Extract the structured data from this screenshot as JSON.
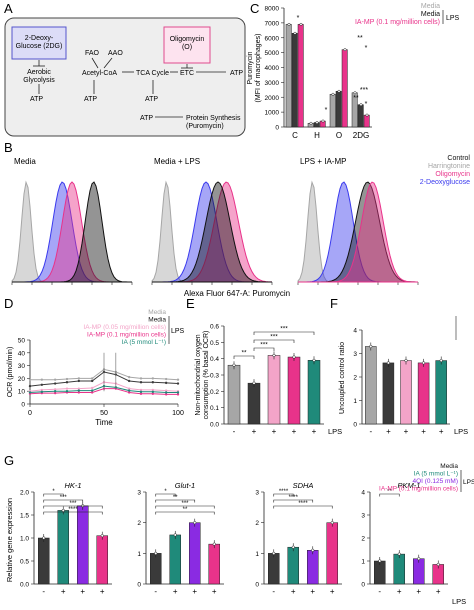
{
  "colors": {
    "grey": "#a6a6a6",
    "dark": "#3a3a3a",
    "pink": "#e8338a",
    "lightpink": "#f3a4c8",
    "teal": "#1f8a7a",
    "purple": "#8a2be2",
    "blue": "#3a3aee",
    "black": "#111111"
  },
  "panel_labels": [
    "A",
    "B",
    "C",
    "D",
    "E",
    "F",
    "G"
  ],
  "panelA": {
    "nodes": {
      "dg": "2-Deoxy-\nGlucose (2DG)",
      "aerobic": "Aerobic\nGlycolysis",
      "fao": "FAO",
      "aao": "AAO",
      "acetyl": "Acetyl-CoA",
      "tca": "TCA Cycle",
      "olig": "Oligomycin\n(O)",
      "etc": "ETC",
      "atp1": "ATP",
      "atp2": "ATP",
      "atp3": "ATP",
      "atp4": "ATP",
      "atp5": "ATP",
      "protein": "Protein Synthesis\n(Puromycin)"
    }
  },
  "panelB": {
    "titles": [
      "Media",
      "Media + LPS",
      "LPS + IA-MP"
    ],
    "legend": [
      {
        "name": "Control",
        "color": "#111111"
      },
      {
        "name": "Harringtonine",
        "color": "#a6a6a6"
      },
      {
        "name": "Oligomycin",
        "color": "#e8338a"
      },
      {
        "name": "2-Deoxyglucose",
        "color": "#3a3aee"
      }
    ],
    "xlabel": "Alexa Fluor 647-A: Puromycin"
  },
  "chart_data": [
    {
      "id": "C",
      "type": "bar",
      "ylabel": "Puromycin\n(MFI of macrophages)",
      "ylim": [
        0,
        8000
      ],
      "yticks": [
        "0",
        "1000",
        "2000",
        "3000",
        "4000",
        "5000",
        "6000",
        "7000",
        "8000"
      ],
      "categories": [
        "C",
        "H",
        "O",
        "2DG"
      ],
      "legend": [
        "Media",
        "Media",
        "IA-MP (0.1 mg/million cells)"
      ],
      "legend_bracket": "LPS",
      "series": [
        {
          "color": "grey",
          "values": [
            6900,
            250,
            2200,
            2300
          ]
        },
        {
          "color": "dark",
          "values": [
            6300,
            300,
            2400,
            1500
          ]
        },
        {
          "color": "pink",
          "values": [
            6900,
            400,
            5200,
            800
          ]
        }
      ],
      "significance": [
        "*",
        "*",
        "**",
        "*",
        "***",
        "**",
        "*"
      ]
    },
    {
      "id": "D",
      "type": "line",
      "xlabel": "Time",
      "ylabel": "OCR (pmol/min)",
      "xlim": [
        0,
        100
      ],
      "ylim": [
        0,
        50
      ],
      "xticks": [
        "0",
        "50",
        "100"
      ],
      "yticks": [
        "0",
        "10",
        "20",
        "30",
        "40",
        "50"
      ],
      "legend": [
        "Media",
        "Media",
        "IA-MP (0.05 mg/million cells)",
        "IA-MP (0.1 mg/million cells)",
        "IA (5 mmol L⁻¹)"
      ],
      "legend_bracket": "LPS",
      "x": [
        0,
        8,
        17,
        25,
        33,
        42,
        50,
        58,
        67,
        75,
        83,
        92,
        100
      ],
      "series": [
        {
          "color": "grey",
          "values": [
            19,
            19,
            19,
            19.5,
            20,
            20,
            27,
            25,
            21,
            20,
            20,
            19.5,
            19
          ]
        },
        {
          "color": "dark",
          "values": [
            14,
            15,
            16,
            17,
            18,
            18,
            25,
            23,
            18,
            17,
            17,
            16.5,
            16
          ]
        },
        {
          "color": "lightpink",
          "values": [
            10,
            11,
            11.5,
            12,
            12,
            12.5,
            17,
            16,
            12,
            11,
            11,
            10.5,
            10
          ]
        },
        {
          "color": "pink",
          "values": [
            8,
            8.5,
            8.5,
            9,
            9,
            9,
            12,
            12,
            9,
            8,
            8,
            7.5,
            7.5
          ]
        },
        {
          "color": "teal",
          "values": [
            9,
            9.5,
            10,
            10,
            10.5,
            10.5,
            14,
            13,
            10.5,
            9.5,
            9.5,
            9,
            9
          ]
        }
      ]
    },
    {
      "id": "E",
      "type": "bar",
      "ylabel": "Non-mitochondrial oxygen\nconsumption (% basal OCR)",
      "ylim": [
        0,
        0.6
      ],
      "yticks": [
        "0.0",
        "0.1",
        "0.2",
        "0.3",
        "0.4",
        "0.5",
        "0.6"
      ],
      "xlabels": [
        "-",
        "+",
        "+",
        "+",
        "+"
      ],
      "lps": "LPS",
      "bars": [
        {
          "color": "grey",
          "value": 0.36
        },
        {
          "color": "dark",
          "value": 0.25
        },
        {
          "color": "lightpink",
          "value": 0.42
        },
        {
          "color": "pink",
          "value": 0.41
        },
        {
          "color": "teal",
          "value": 0.39
        }
      ],
      "significance": [
        "**",
        "***",
        "***",
        "***"
      ]
    },
    {
      "id": "F",
      "type": "bar",
      "ylabel": "Uncoupled control ratio",
      "ylim": [
        0,
        4
      ],
      "yticks": [
        "0",
        "1",
        "2",
        "3",
        "4"
      ],
      "xlabels": [
        "-",
        "+",
        "+",
        "+",
        "+"
      ],
      "lps": "LPS",
      "bars": [
        {
          "color": "grey",
          "value": 3.3
        },
        {
          "color": "dark",
          "value": 2.6
        },
        {
          "color": "lightpink",
          "value": 2.7
        },
        {
          "color": "pink",
          "value": 2.6
        },
        {
          "color": "teal",
          "value": 2.7
        }
      ]
    },
    {
      "id": "G",
      "type": "bar",
      "ylabel": "Relative gene expression",
      "legend": [
        "Media",
        "IA (5 mmol L⁻¹)",
        "4OI (0.125 mM)",
        "IA-MP (0.1 mg/million cells)"
      ],
      "legend_bracket": "LPS",
      "xlabels": [
        "-",
        "+",
        "+",
        "+"
      ],
      "lps": "LPS",
      "groups": [
        {
          "gene": "HK-1",
          "yticks": [
            "0.0",
            "0.5",
            "1.0",
            "1.5",
            "2.0"
          ],
          "ylim": [
            0,
            2.0
          ],
          "values": [
            1.0,
            1.6,
            1.7,
            1.05
          ],
          "sig": [
            "*",
            "***",
            "***",
            "****"
          ]
        },
        {
          "gene": "Glut-1",
          "yticks": [
            "0",
            "1",
            "2",
            "3"
          ],
          "ylim": [
            0,
            3
          ],
          "values": [
            1.0,
            1.6,
            2.0,
            1.3
          ],
          "sig": [
            "*",
            "**",
            "***",
            "**"
          ]
        },
        {
          "gene": "SDHA",
          "yticks": [
            "0",
            "1",
            "2",
            "3"
          ],
          "ylim": [
            0,
            3
          ],
          "values": [
            1.0,
            1.2,
            1.1,
            2.0
          ],
          "sig": [
            "****",
            "****",
            "****"
          ]
        },
        {
          "gene": "PKM-1",
          "yticks": [
            "0",
            "1",
            "2",
            "3",
            "4"
          ],
          "ylim": [
            0,
            4
          ],
          "values": [
            1.0,
            1.3,
            1.1,
            0.85
          ],
          "sig": [
            "**"
          ]
        }
      ],
      "colors": [
        "dark",
        "teal",
        "purple",
        "pink"
      ]
    }
  ]
}
